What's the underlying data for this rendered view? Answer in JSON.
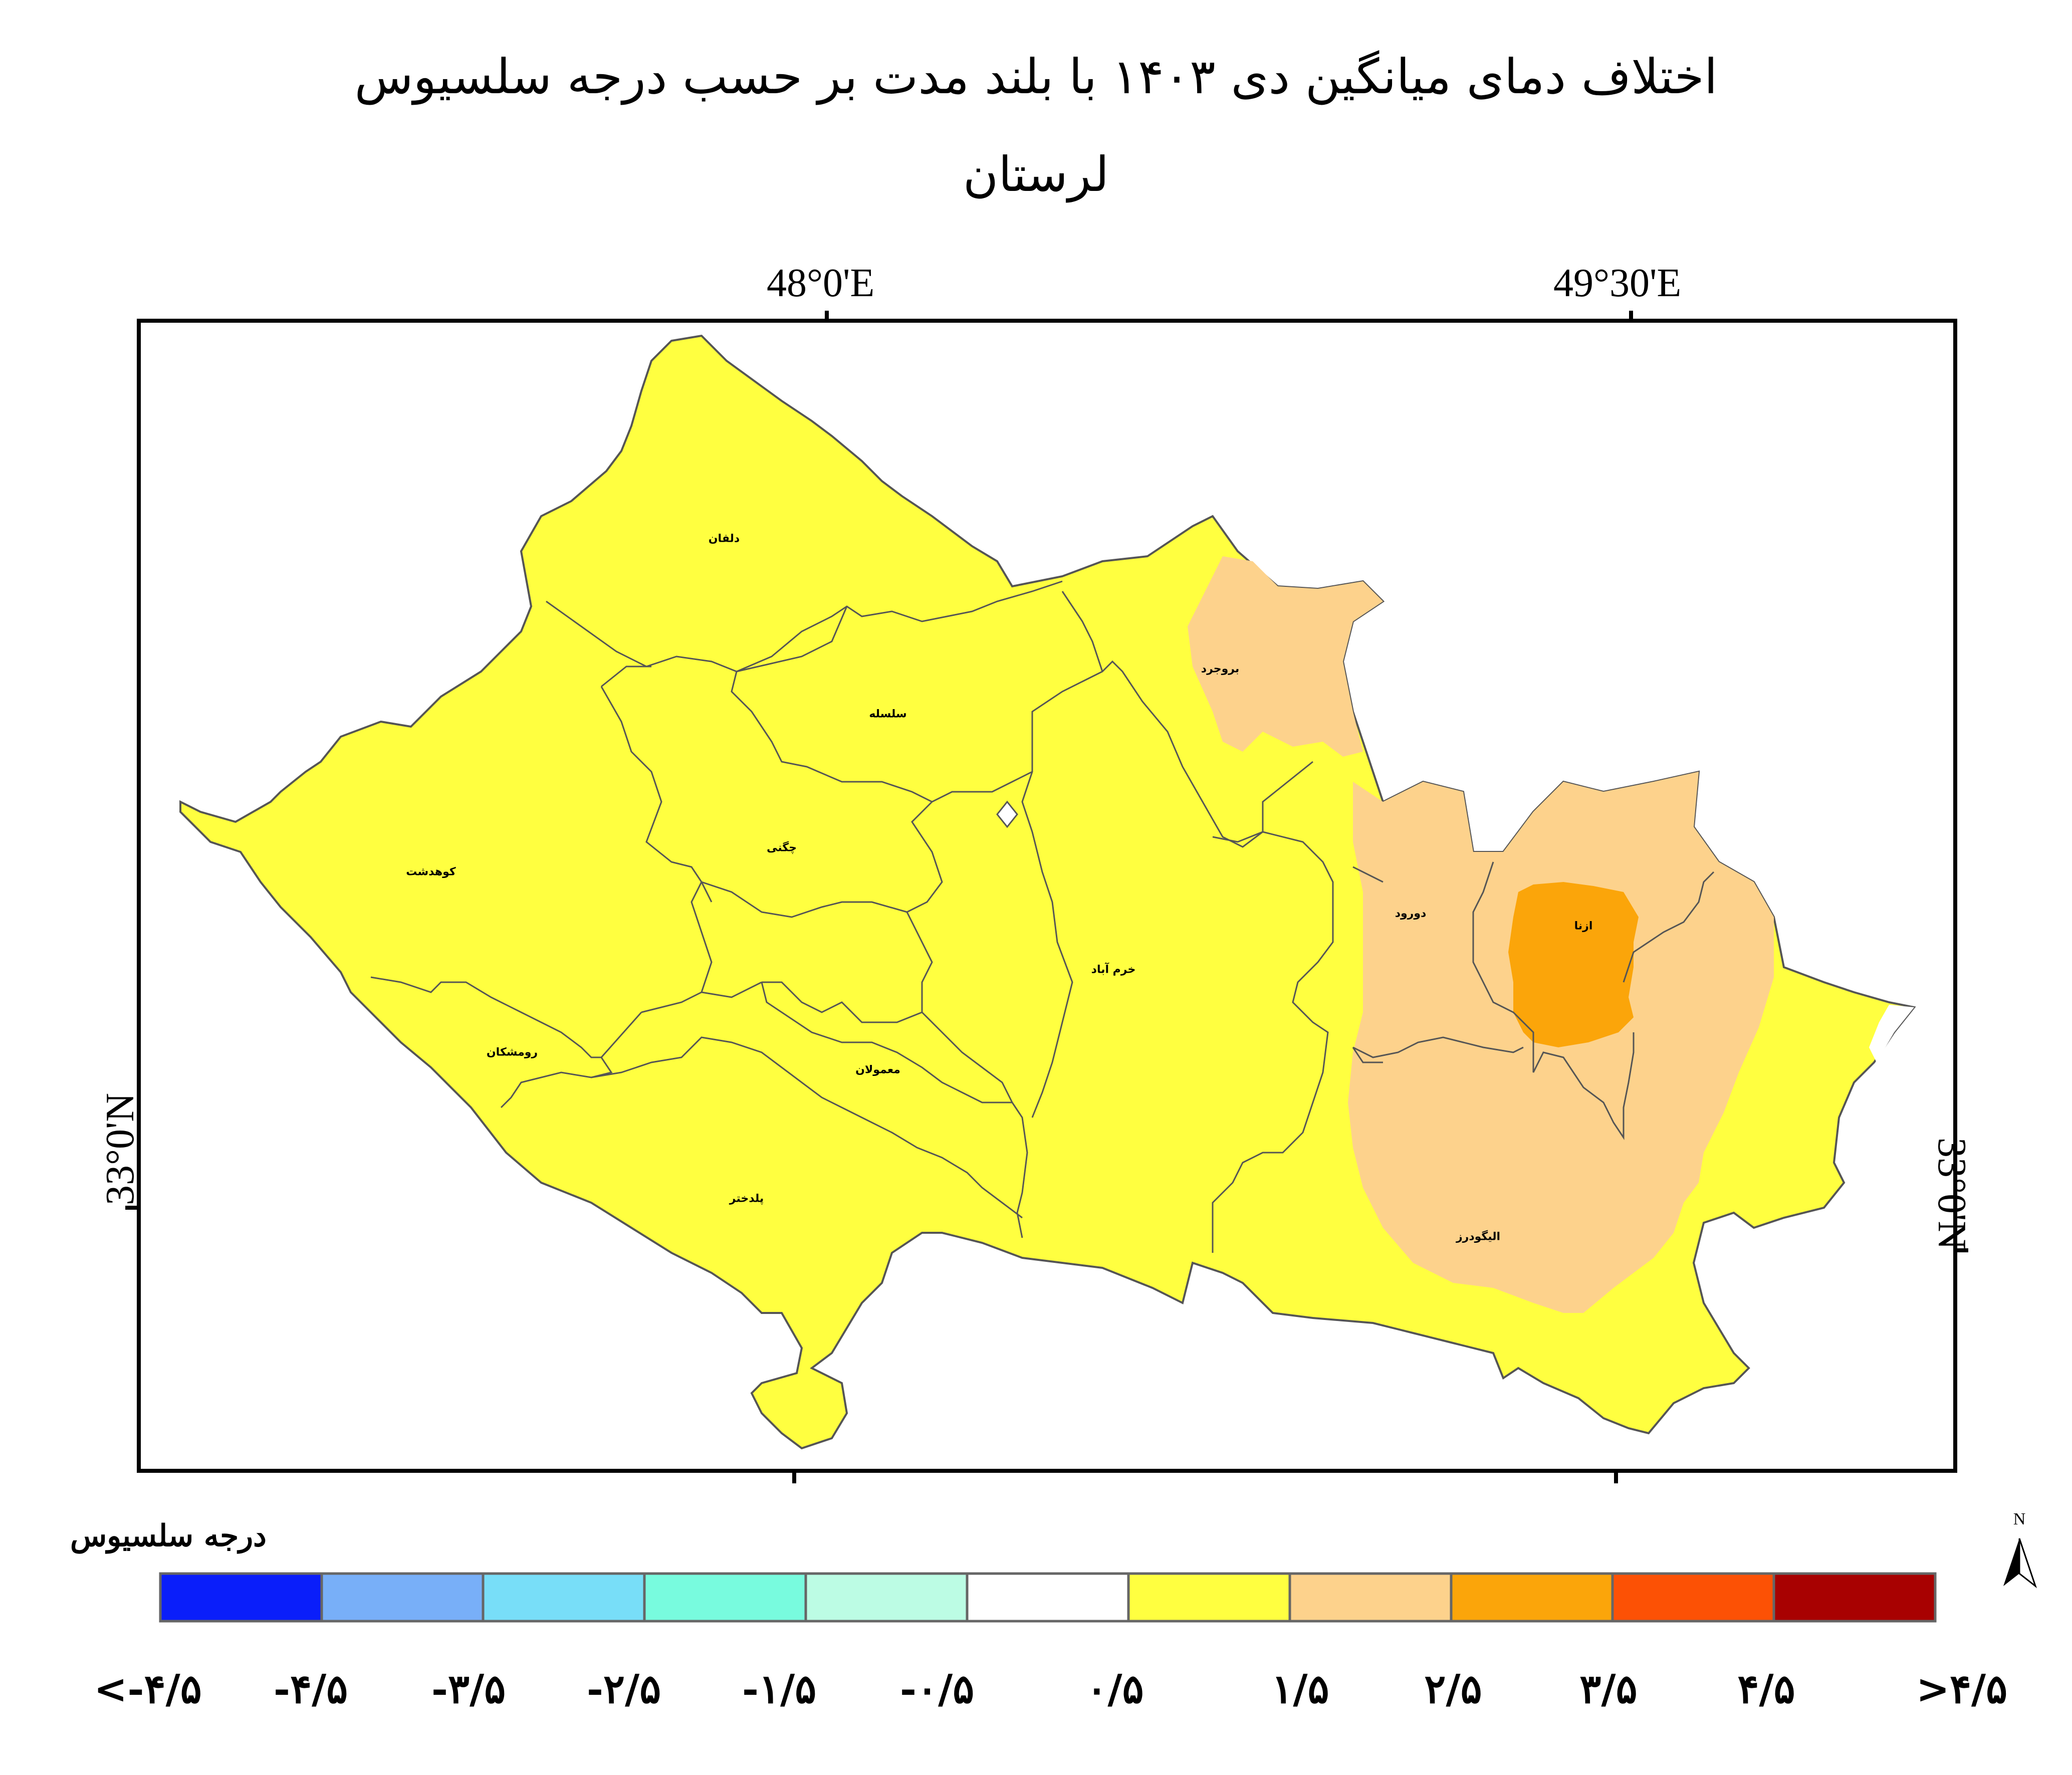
{
  "title": {
    "line1": "اختلاف دمای میانگین  دی ۱۴۰۳ با بلند مدت بر حسب درجه سلسیوس",
    "line2": "لرستان"
  },
  "coords": {
    "lon_48": "48°0'E",
    "lon_49_30": "49°30'E",
    "lat_33_left": "33°0'N",
    "lat_33_right": "33°0'N"
  },
  "regions": [
    {
      "name": "دلفان",
      "class": "0/5 - 1/5",
      "color": "#ffff40"
    },
    {
      "name": "سلسله",
      "class": "0/5 - 1/5",
      "color": "#ffff40"
    },
    {
      "name": "بروجرد",
      "class": "1/5 - 2/5",
      "color": "#fdd28c"
    },
    {
      "name": "کوهدشت",
      "class": "0/5 - 1/5",
      "color": "#ffff40"
    },
    {
      "name": "چگنی",
      "class": "0/5 - 1/5",
      "color": "#ffff40"
    },
    {
      "name": "خرم آباد",
      "class": "0/5 - 1/5",
      "color": "#ffff40"
    },
    {
      "name": "دورود",
      "class": "1/5 - 2/5",
      "color": "#fdd28c"
    },
    {
      "name": "ازنا",
      "class": "2/5 - 3/5",
      "color": "#fba50a"
    },
    {
      "name": "رومشکان",
      "class": "0/5 - 1/5",
      "color": "#ffff40"
    },
    {
      "name": "معمولان",
      "class": "0/5 - 1/5",
      "color": "#ffff40"
    },
    {
      "name": "پلدختر",
      "class": "0/5 - 1/5",
      "color": "#ffff40"
    },
    {
      "name": "الیگودرز",
      "class": "1/5 - 2/5",
      "color": "#fdd28c"
    }
  ],
  "legend": {
    "title": "درجه سلسیوس",
    "colors": [
      "#0a1efa",
      "#78aff8",
      "#78def8",
      "#78fbde",
      "#bcfce4",
      "#ffffff",
      "#ffff40",
      "#fdd28c",
      "#fba50a",
      "#fc5105",
      "#a80101"
    ],
    "labels": [
      "<-۴/۵",
      "-۴/۵",
      "-۳/۵",
      "-۲/۵",
      "-۱/۵",
      "-۰/۵",
      "۰/۵",
      "۱/۵",
      "۲/۵",
      "۳/۵",
      "۴/۵",
      ">۴/۵"
    ]
  },
  "north_arrow": {
    "label": "N",
    "icon": "north-arrow-icon"
  }
}
